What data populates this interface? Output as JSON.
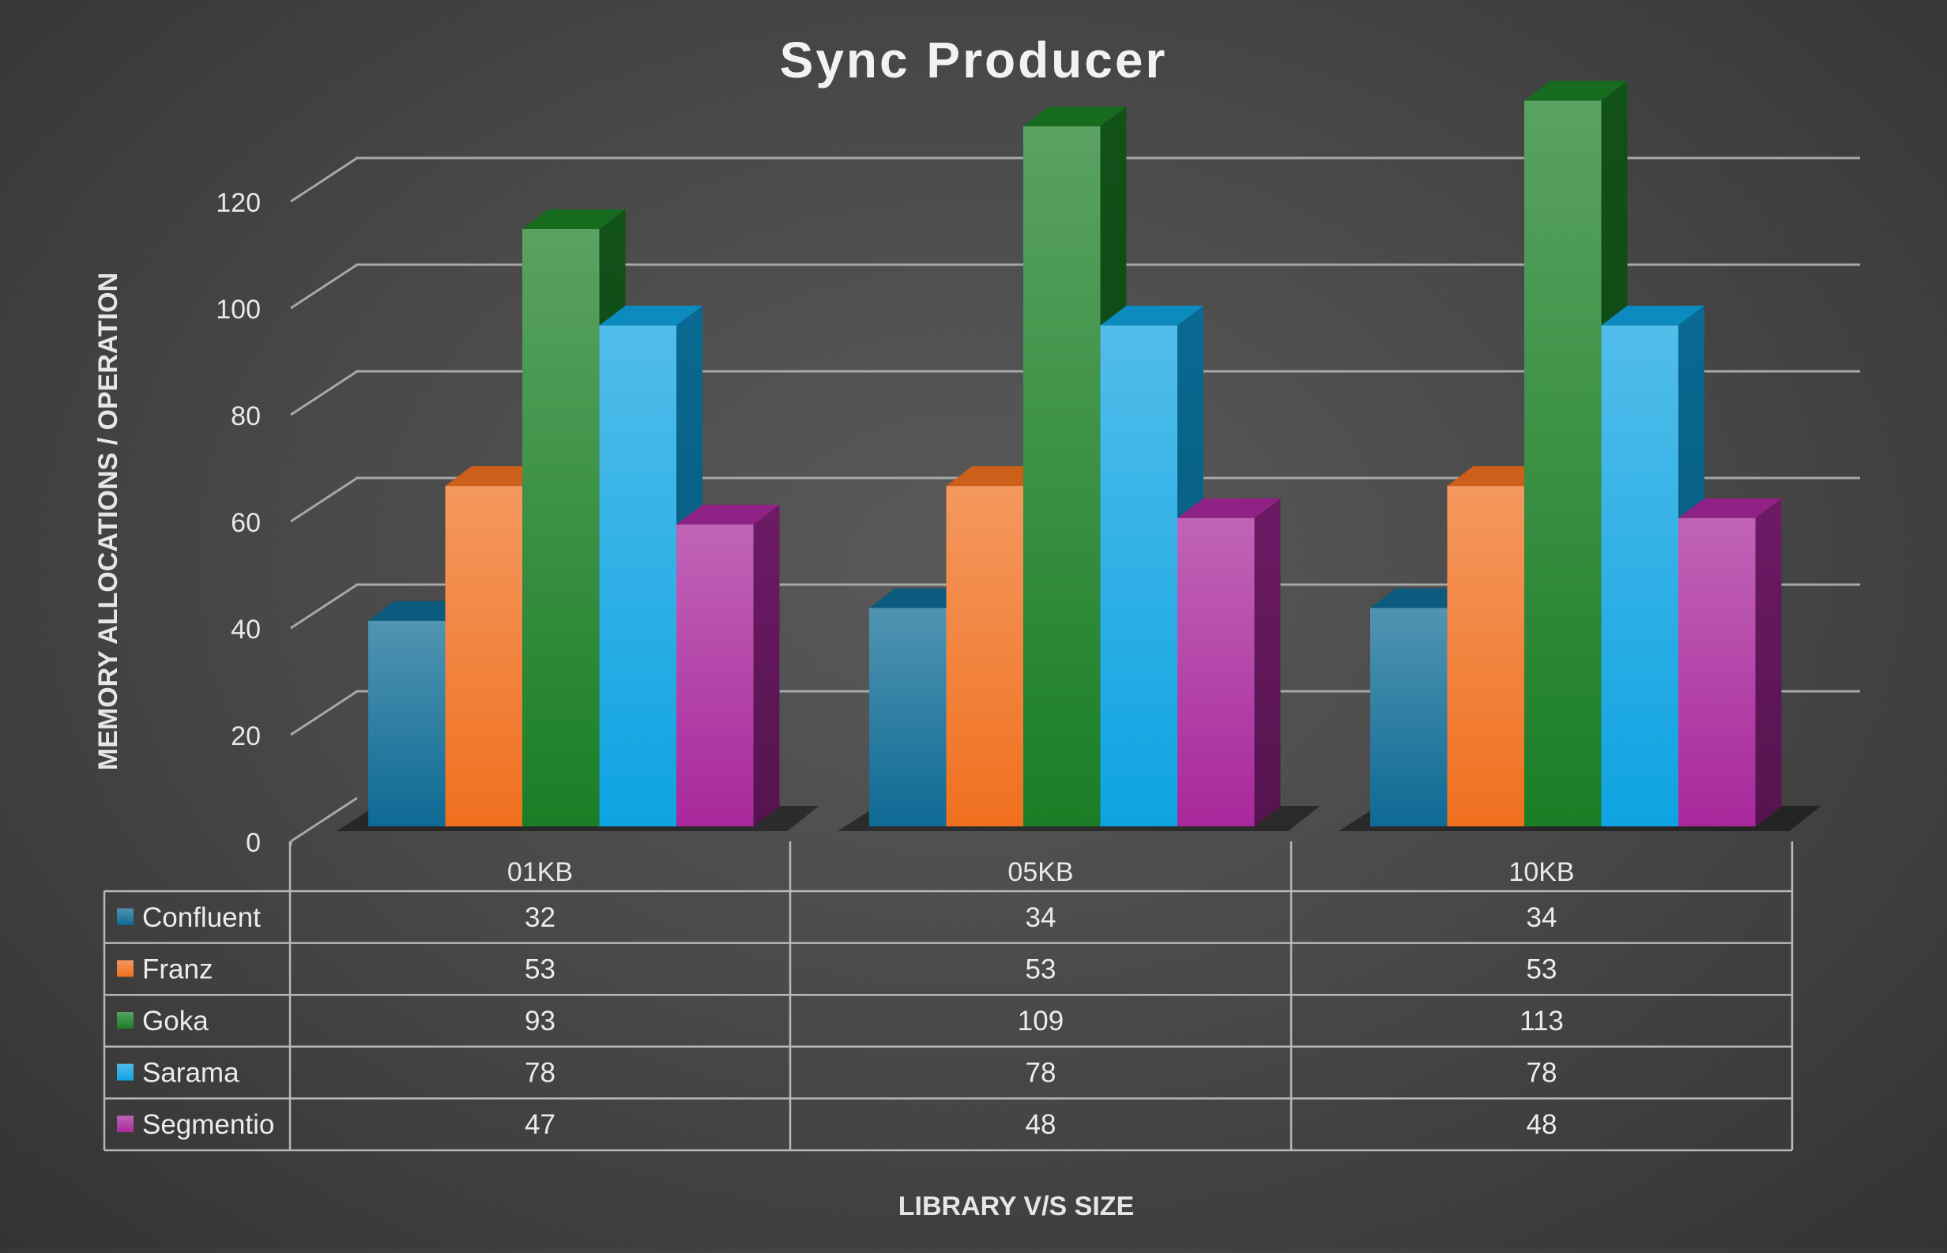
{
  "chart_data": {
    "type": "bar",
    "title": "Sync Producer",
    "xlabel": "LIBRARY V/S SIZE",
    "ylabel": "MEMORY ALLOCATIONS / OPERATION",
    "categories": [
      "01KB",
      "05KB",
      "10KB"
    ],
    "ylim": [
      0,
      120
    ],
    "yticks": [
      "0",
      "20",
      "40",
      "60",
      "80",
      "100",
      "120"
    ],
    "grid": true,
    "legend": "data-table",
    "series": [
      {
        "name": "Confluent",
        "values": [
          32,
          34,
          34
        ],
        "color": "#0e6a94"
      },
      {
        "name": "Franz",
        "values": [
          53,
          53,
          53
        ],
        "color": "#f0701f"
      },
      {
        "name": "Goka",
        "values": [
          93,
          109,
          113
        ],
        "color": "#1a7e25"
      },
      {
        "name": "Sarama",
        "values": [
          78,
          78,
          78
        ],
        "color": "#0ea3e2"
      },
      {
        "name": "Segmentio",
        "values": [
          47,
          48,
          48
        ],
        "color": "#a8289b"
      }
    ]
  }
}
